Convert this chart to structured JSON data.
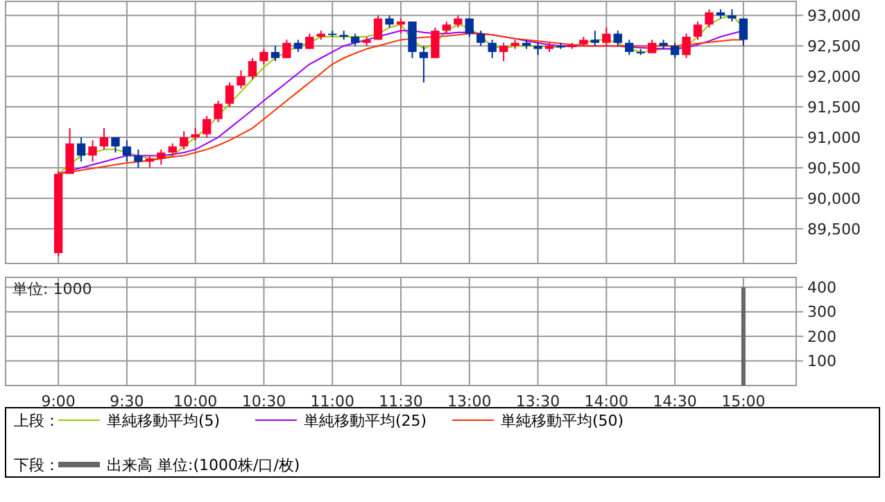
{
  "chart_data": [
    {
      "type": "candlestick",
      "categories": [
        null,
        null,
        null,
        null,
        null,
        null,
        null,
        null,
        null,
        null,
        null,
        null,
        null,
        null,
        null,
        null,
        null,
        null,
        null,
        null,
        null,
        null,
        null,
        null,
        null,
        null,
        null,
        null,
        null,
        null,
        null,
        null,
        null,
        null,
        null,
        null,
        null,
        null,
        null,
        null,
        null,
        null,
        null,
        null,
        null,
        null,
        null,
        null,
        null,
        null,
        null,
        null,
        null,
        null,
        null,
        null,
        null,
        null,
        null,
        null,
        null,
        null,
        null,
        null,
        null,
        null,
        null,
        null,
        null
      ],
      "ohlc": [
        null,
        null,
        null,
        null,
        [
          89100,
          90450,
          89050,
          90400
        ],
        [
          90400,
          91150,
          90400,
          90900
        ],
        [
          90900,
          91000,
          90600,
          90700
        ],
        [
          90700,
          90950,
          90600,
          90850
        ],
        [
          90850,
          91150,
          90800,
          91000
        ],
        [
          91000,
          91000,
          90750,
          90850
        ],
        [
          90850,
          90950,
          90600,
          90700
        ],
        [
          90700,
          90800,
          90500,
          90600
        ],
        [
          90600,
          90700,
          90500,
          90650
        ],
        [
          90650,
          90800,
          90550,
          90750
        ],
        [
          90750,
          90900,
          90700,
          90850
        ],
        [
          90850,
          91100,
          90800,
          91000
        ],
        [
          91000,
          91150,
          90950,
          91050
        ],
        [
          91050,
          91350,
          91000,
          91300
        ],
        [
          91300,
          91600,
          91250,
          91550
        ],
        [
          91550,
          91900,
          91500,
          91850
        ],
        [
          91850,
          92100,
          91800,
          92000
        ],
        [
          92000,
          92300,
          91950,
          92250
        ],
        [
          92250,
          92450,
          92200,
          92400
        ],
        [
          92400,
          92500,
          92250,
          92300
        ],
        [
          92300,
          92600,
          92300,
          92550
        ],
        [
          92550,
          92600,
          92400,
          92450
        ],
        [
          92450,
          92700,
          92450,
          92650
        ],
        [
          92650,
          92750,
          92600,
          92700
        ],
        [
          92700,
          92750,
          92650,
          92680
        ],
        [
          92680,
          92750,
          92600,
          92650
        ],
        [
          92650,
          92700,
          92500,
          92550
        ],
        [
          92550,
          92650,
          92500,
          92600
        ],
        [
          92600,
          93000,
          92600,
          92950
        ],
        [
          92950,
          93000,
          92800,
          92850
        ],
        [
          92850,
          92950,
          92700,
          92900
        ],
        [
          92900,
          92900,
          92300,
          92400
        ],
        [
          92400,
          92500,
          91900,
          92300
        ],
        [
          92300,
          92800,
          92300,
          92750
        ],
        [
          92750,
          92900,
          92700,
          92850
        ],
        [
          92850,
          93000,
          92800,
          92950
        ],
        [
          92950,
          92950,
          92650,
          92700
        ],
        [
          92700,
          92750,
          92500,
          92550
        ],
        [
          92550,
          92600,
          92300,
          92400
        ],
        [
          92400,
          92550,
          92250,
          92500
        ],
        [
          92500,
          92600,
          92450,
          92550
        ],
        [
          92550,
          92600,
          92450,
          92500
        ],
        [
          92500,
          92550,
          92350,
          92450
        ],
        [
          92450,
          92550,
          92400,
          92500
        ],
        [
          92500,
          92550,
          92450,
          92480
        ],
        [
          92480,
          92550,
          92450,
          92520
        ],
        [
          92520,
          92650,
          92500,
          92600
        ],
        [
          92600,
          92750,
          92500,
          92550
        ],
        [
          92550,
          92800,
          92500,
          92700
        ],
        [
          92700,
          92750,
          92500,
          92550
        ],
        [
          92550,
          92600,
          92350,
          92400
        ],
        [
          92400,
          92450,
          92350,
          92380
        ],
        [
          92380,
          92600,
          92380,
          92550
        ],
        [
          92550,
          92600,
          92450,
          92500
        ],
        [
          92500,
          92550,
          92300,
          92350
        ],
        [
          92350,
          92700,
          92300,
          92650
        ],
        [
          92650,
          92900,
          92600,
          92850
        ],
        [
          92850,
          93100,
          92800,
          93050
        ],
        [
          93050,
          93100,
          92950,
          93000
        ],
        [
          93000,
          93100,
          92900,
          92950
        ],
        [
          92950,
          92950,
          92500,
          92600
        ],
        null,
        null,
        null,
        null
      ],
      "colors": [
        null,
        null,
        null,
        null,
        "#ff0033",
        "#ff0033",
        "#003399",
        "#ff0033",
        "#ff0033",
        "#003399",
        "#003399",
        "#003399",
        "#ff0033",
        "#ff0033",
        "#ff0033",
        "#ff0033",
        "#ff0033",
        "#ff0033",
        "#ff0033",
        "#ff0033",
        "#ff0033",
        "#ff0033",
        "#ff0033",
        "#003399",
        "#ff0033",
        "#003399",
        "#ff0033",
        "#ff0033",
        "#003399",
        "#003399",
        "#003399",
        "#ff0033",
        "#ff0033",
        "#003399",
        "#ff0033",
        "#003399",
        "#003399",
        "#ff0033",
        "#ff0033",
        "#ff0033",
        "#003399",
        "#003399",
        "#003399",
        "#ff0033",
        "#ff0033",
        "#003399",
        "#003399",
        "#ff0033",
        "#003399",
        "#ff0033",
        "#ff0033",
        "#003399",
        "#ff0033",
        "#003399",
        "#003399",
        "#003399",
        "#ff0033",
        "#003399",
        "#003399",
        "#ff0033",
        "#ff0033",
        "#ff0033",
        "#003399",
        "#003399",
        "#003399",
        null,
        null,
        null,
        null
      ],
      "series": [
        {
          "type": "line",
          "name": "単純移動平均(5)",
          "color": "#99cc00",
          "values": [
            null,
            null,
            null,
            null,
            90400,
            90550,
            90700,
            90750,
            90800,
            90800,
            90750,
            90700,
            90650,
            90650,
            90700,
            90850,
            91000,
            91150,
            91350,
            91550,
            91750,
            91950,
            92150,
            92300,
            92400,
            92500,
            92550,
            92650,
            92650,
            92650,
            92650,
            92650,
            92700,
            92800,
            92850,
            92600,
            92450,
            92550,
            92750,
            92850,
            92800,
            92650,
            92500,
            92450,
            92500,
            92500,
            92500,
            92480,
            92480,
            92500,
            92550,
            92600,
            92600,
            92550,
            92450,
            92400,
            92420,
            92450,
            92450,
            92500,
            92650,
            92850,
            92950,
            93000,
            92800,
            null,
            null,
            null,
            null
          ]
        },
        {
          "type": "line",
          "name": "単純移動平均(25)",
          "color": "#9900ff",
          "values": [
            null,
            null,
            null,
            null,
            90400,
            90450,
            90500,
            90550,
            90600,
            90650,
            90700,
            90700,
            90700,
            90700,
            90720,
            90750,
            90800,
            90900,
            91000,
            91150,
            91300,
            91450,
            91600,
            91750,
            91900,
            92050,
            92200,
            92300,
            92400,
            92500,
            92550,
            92600,
            92650,
            92700,
            92750,
            92750,
            92720,
            92700,
            92700,
            92720,
            92720,
            92700,
            92680,
            92650,
            92620,
            92580,
            92550,
            92520,
            92500,
            92500,
            92500,
            92500,
            92500,
            92500,
            92480,
            92470,
            92460,
            92450,
            92450,
            92470,
            92520,
            92580,
            92650,
            92700,
            92750,
            null,
            null,
            null,
            null
          ]
        },
        {
          "type": "line",
          "name": "単純移動平均(50)",
          "color": "#ff3300",
          "values": [
            null,
            null,
            null,
            null,
            90400,
            90430,
            90460,
            90490,
            90520,
            90550,
            90580,
            90600,
            90620,
            90650,
            90680,
            90700,
            90750,
            90800,
            90870,
            90950,
            91050,
            91150,
            91300,
            91450,
            91600,
            91750,
            91900,
            92050,
            92200,
            92300,
            92380,
            92450,
            92500,
            92550,
            92600,
            92620,
            92640,
            92650,
            92660,
            92680,
            92700,
            92700,
            92680,
            92650,
            92620,
            92600,
            92580,
            92560,
            92540,
            92520,
            92500,
            92500,
            92500,
            92500,
            92500,
            92500,
            92500,
            92500,
            92500,
            92520,
            92540,
            92560,
            92580,
            92600,
            92600,
            null,
            null,
            null,
            null
          ]
        }
      ],
      "ylim": [
        88930,
        93230
      ],
      "yticks": [
        {
          "value": 89500,
          "label": "89,500"
        },
        {
          "value": 90000,
          "label": "90,000"
        },
        {
          "value": 90500,
          "label": "90,500"
        },
        {
          "value": 91000,
          "label": "91,000"
        },
        {
          "value": 91500,
          "label": "91,500"
        },
        {
          "value": 92000,
          "label": "92,000"
        },
        {
          "value": 92500,
          "label": "92,500"
        },
        {
          "value": 93000,
          "label": "93,000"
        }
      ],
      "grid": true,
      "tick_labels": "y",
      "legend": "bottom",
      "legend_title": "上段："
    },
    {
      "type": "bar",
      "categories": [
        null,
        null,
        null,
        null,
        "9:00",
        null,
        null,
        null,
        null,
        null,
        "9:30",
        null,
        null,
        null,
        null,
        null,
        "10:00",
        null,
        null,
        null,
        null,
        null,
        "10:30",
        null,
        null,
        null,
        null,
        null,
        "11:00",
        null,
        null,
        null,
        null,
        null,
        "11:30",
        null,
        null,
        null,
        null,
        null,
        "13:00",
        null,
        null,
        null,
        null,
        null,
        "13:30",
        null,
        null,
        null,
        null,
        null,
        "14:00",
        null,
        null,
        null,
        null,
        null,
        "14:30",
        null,
        null,
        null,
        null,
        null,
        "15:00",
        null,
        null,
        null,
        null
      ],
      "series": [
        {
          "name": "出来高 単位:(1000株/口/枚)",
          "color": "#666666",
          "values": [
            null,
            null,
            null,
            null,
            0,
            0,
            0,
            0,
            0,
            0,
            0,
            0,
            0,
            0,
            0,
            0,
            0,
            0,
            0,
            0,
            0,
            0,
            0,
            0,
            0,
            0,
            0,
            0,
            0,
            0,
            0,
            0,
            0,
            0,
            0,
            0,
            0,
            0,
            0,
            0,
            0,
            0,
            0,
            0,
            0,
            0,
            0,
            0,
            0,
            0,
            0,
            0,
            0,
            0,
            0,
            0,
            0,
            0,
            0,
            0,
            0,
            0,
            0,
            0,
            400,
            null,
            null,
            null,
            null
          ]
        }
      ],
      "ylim": [
        0,
        440
      ],
      "yticks": [
        100,
        200,
        300,
        400
      ],
      "grid": true,
      "legend": "bottom",
      "legend_title": "下段：",
      "annotations": [
        "単位: 1000"
      ]
    }
  ]
}
